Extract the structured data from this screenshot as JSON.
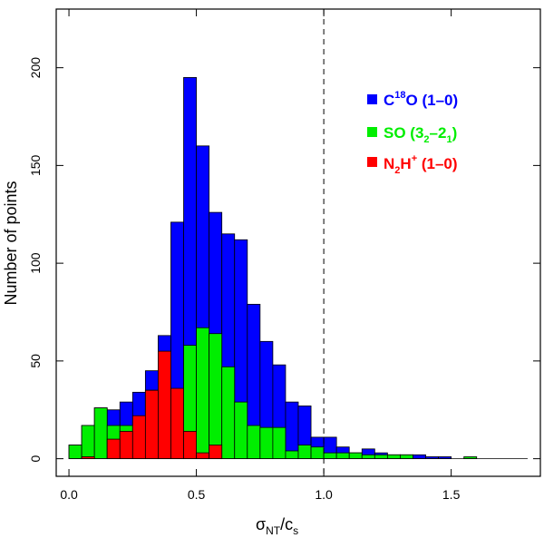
{
  "chart_data": {
    "type": "bar",
    "subtype": "overlaid-histogram",
    "bin_width": 0.05,
    "xlim": [
      -0.05,
      1.85
    ],
    "ylim": [
      -9,
      230
    ],
    "xticks": [
      0.0,
      0.5,
      1.0,
      1.5
    ],
    "xtick_labels": [
      "0.0",
      "0.5",
      "1.0",
      "1.5"
    ],
    "yticks": [
      0,
      50,
      100,
      150,
      200
    ],
    "ytick_labels": [
      "0",
      "50",
      "100",
      "150",
      "200"
    ],
    "ylabel": "Number of points",
    "xlabel": {
      "sigma": "σ",
      "sub_nt": "NT",
      "slash": "/c",
      "sub_s": "s"
    },
    "reference_line": {
      "x": 1.0,
      "style": "dashed"
    },
    "series": [
      {
        "name": "C18O (1–0)",
        "color": "#0000ff",
        "legend": {
          "base": "C",
          "sup": "18",
          "rest": "O (1–0)"
        },
        "bin_starts": [
          0.0,
          0.05,
          0.1,
          0.15,
          0.2,
          0.25,
          0.3,
          0.35,
          0.4,
          0.45,
          0.5,
          0.55,
          0.6,
          0.65,
          0.7,
          0.75,
          0.8,
          0.85,
          0.9,
          0.95,
          1.0,
          1.05,
          1.1,
          1.15,
          1.2,
          1.25,
          1.3,
          1.35,
          1.4,
          1.45,
          1.5,
          1.55,
          1.6,
          1.65,
          1.7,
          1.75
        ],
        "values": [
          7,
          17,
          26,
          25,
          29,
          34,
          45,
          63,
          121,
          195,
          160,
          126,
          115,
          112,
          79,
          60,
          48,
          29,
          27,
          11,
          11,
          6,
          3,
          5,
          3,
          2,
          2,
          2,
          1,
          1,
          0,
          0,
          0,
          0,
          0,
          0
        ]
      },
      {
        "name": "SO (32–21)",
        "color": "#00ee00",
        "legend": {
          "base": "SO (3",
          "sub1": "2",
          "mid": "–2",
          "sub2": "1",
          "rest": ")"
        },
        "bin_starts": [
          0.0,
          0.05,
          0.1,
          0.15,
          0.2,
          0.25,
          0.3,
          0.35,
          0.4,
          0.45,
          0.5,
          0.55,
          0.6,
          0.65,
          0.7,
          0.75,
          0.8,
          0.85,
          0.9,
          0.95,
          1.0,
          1.05,
          1.1,
          1.15,
          1.2,
          1.25,
          1.3,
          1.35,
          1.4,
          1.45,
          1.5,
          1.55,
          1.6,
          1.65,
          1.7,
          1.75
        ],
        "values": [
          7,
          17,
          26,
          17,
          17,
          19,
          35,
          35,
          35,
          58,
          67,
          64,
          47,
          29,
          17,
          16,
          16,
          4,
          7,
          6,
          3,
          3,
          3,
          2,
          2,
          2,
          2,
          0,
          0,
          0,
          0,
          1,
          0,
          0,
          0,
          0
        ]
      },
      {
        "name": "N2H+ (1–0)",
        "color": "#ff0000",
        "legend": {
          "base": "N",
          "sub": "2",
          "mid": "H",
          "sup": "+",
          "rest": " (1–0)"
        },
        "bin_starts": [
          0.0,
          0.05,
          0.1,
          0.15,
          0.2,
          0.25,
          0.3,
          0.35,
          0.4,
          0.45,
          0.5,
          0.55,
          0.6,
          0.65,
          0.7,
          0.75,
          0.8,
          0.85,
          0.9,
          0.95,
          1.0,
          1.05,
          1.1,
          1.15,
          1.2,
          1.25,
          1.3,
          1.35,
          1.4,
          1.45,
          1.5,
          1.55,
          1.6,
          1.65,
          1.7,
          1.75
        ],
        "values": [
          0,
          1,
          0,
          10,
          14,
          22,
          35,
          55,
          36,
          14,
          3,
          7,
          0,
          0,
          0,
          0,
          0,
          0,
          0,
          0,
          0,
          0,
          0,
          0,
          0,
          0,
          0,
          0,
          0,
          0,
          0,
          0,
          0,
          0,
          0,
          0
        ]
      }
    ]
  }
}
